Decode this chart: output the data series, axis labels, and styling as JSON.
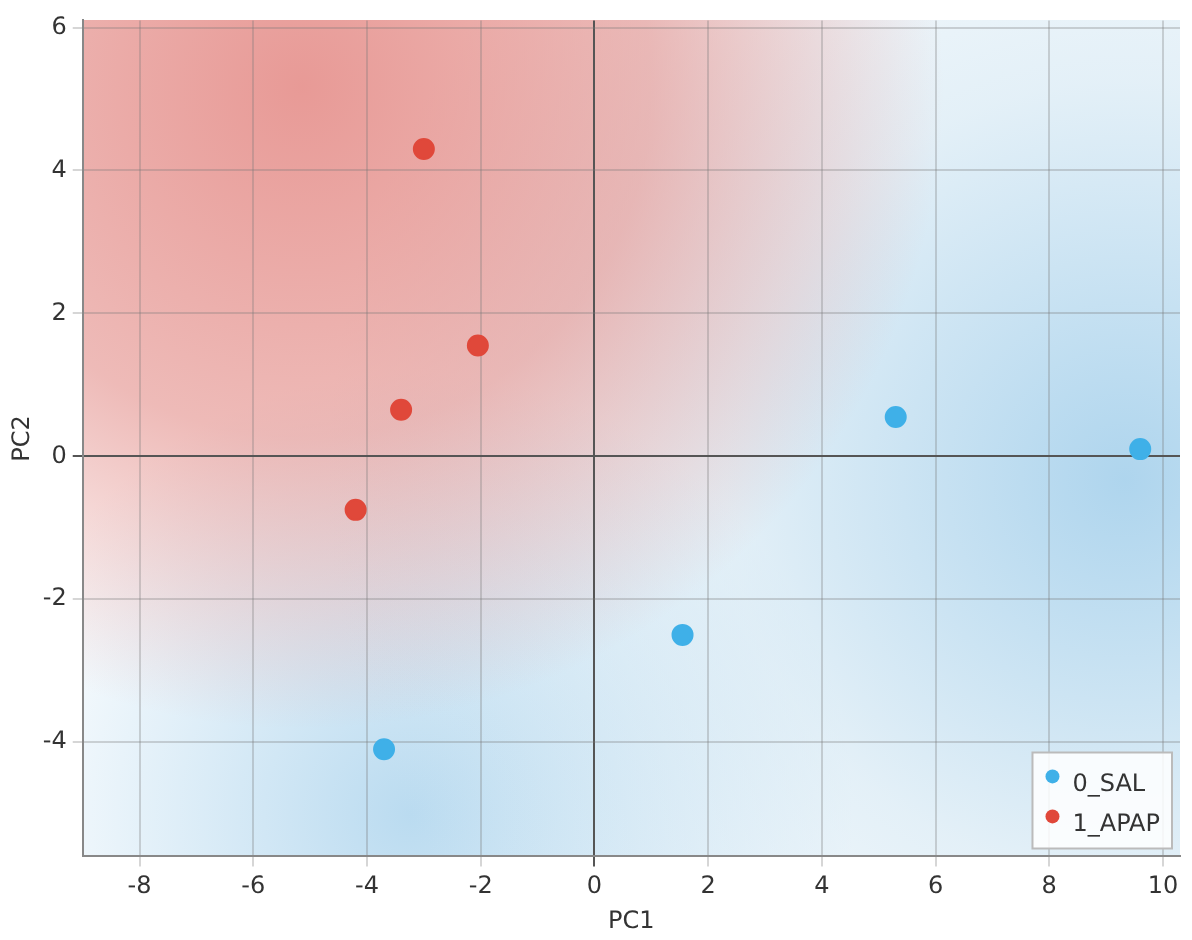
{
  "chart_data": {
    "type": "scatter",
    "xlabel": "PC1",
    "ylabel": "PC2",
    "xlim": [
      -9,
      10.3
    ],
    "ylim": [
      -5.6,
      6.1
    ],
    "xticks": [
      -8,
      -6,
      -4,
      -2,
      0,
      2,
      4,
      6,
      8,
      10
    ],
    "yticks": [
      -4,
      -2,
      0,
      2,
      4,
      6
    ],
    "grid": true,
    "legend": "bottom right",
    "marker": "circle",
    "series": [
      {
        "name": "0_SAL",
        "color": "#3fb0e8",
        "x": [
          5.3,
          9.6,
          1.55,
          -3.7
        ],
        "values": [
          0.55,
          0.1,
          -2.5,
          -4.1
        ]
      },
      {
        "name": "1_APAP",
        "color": "#e0483a",
        "x": [
          -3.0,
          -2.05,
          -3.4,
          -4.2
        ],
        "values": [
          4.3,
          1.55,
          0.65,
          -0.75
        ]
      }
    ]
  }
}
